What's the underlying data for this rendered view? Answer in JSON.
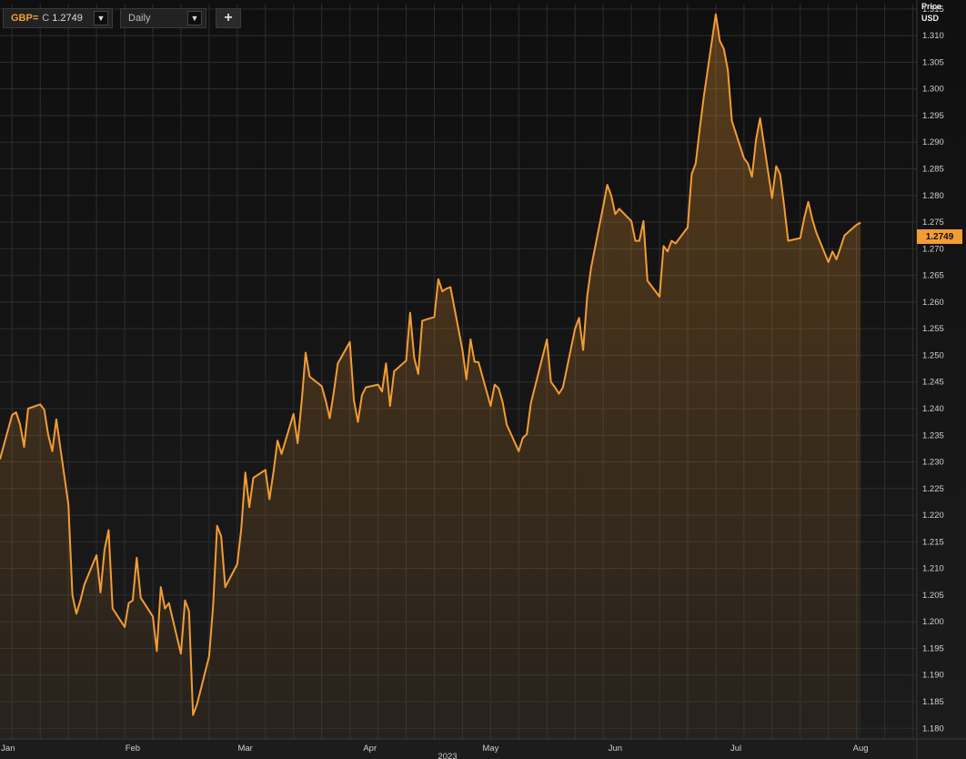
{
  "toolbar": {
    "symbol": "GBP=",
    "price_label": "C",
    "price_value": "1.2749",
    "interval": "Daily",
    "add_label": "+",
    "dropdown_icon": "triangle-down-icon",
    "add_icon": "plus-icon"
  },
  "axis": {
    "label_price": "Price",
    "label_currency": "USD"
  },
  "last_price_tag": "1.2749",
  "colors": {
    "line": "#f39c34",
    "background": "#161616",
    "grid": "#2e2e2e",
    "text": "#d0d0d0"
  },
  "chart_data": {
    "type": "area",
    "title": "",
    "xlabel": "2023",
    "ylabel": "Price USD",
    "ylim": [
      1.178,
      1.316
    ],
    "xlim": [
      "2022-12-30",
      "2023-08-15"
    ],
    "grid": true,
    "y_ticks": [
      "1.180",
      "1.185",
      "1.190",
      "1.195",
      "1.200",
      "1.205",
      "1.210",
      "1.215",
      "1.220",
      "1.225",
      "1.230",
      "1.235",
      "1.240",
      "1.245",
      "1.250",
      "1.255",
      "1.260",
      "1.265",
      "1.270",
      "1.275",
      "1.280",
      "1.285",
      "1.290",
      "1.295",
      "1.300",
      "1.305",
      "1.310",
      "1.315"
    ],
    "x_ticks": [
      {
        "label": "Jan",
        "date": "2023-01-01"
      },
      {
        "label": "Feb",
        "date": "2023-02-01"
      },
      {
        "label": "Mar",
        "date": "2023-03-01"
      },
      {
        "label": "Apr",
        "date": "2023-04-01"
      },
      {
        "label": "May",
        "date": "2023-05-01"
      },
      {
        "label": "Jun",
        "date": "2023-06-01"
      },
      {
        "label": "Jul",
        "date": "2023-07-01"
      },
      {
        "label": "Aug",
        "date": "2023-08-01"
      }
    ],
    "series": [
      {
        "name": "GBP=",
        "points": [
          [
            "2022-12-30",
            1.2305
          ],
          [
            "2023-01-02",
            1.2388
          ],
          [
            "2023-01-03",
            1.2393
          ],
          [
            "2023-01-04",
            1.237
          ],
          [
            "2023-01-05",
            1.2328
          ],
          [
            "2023-01-06",
            1.24
          ],
          [
            "2023-01-09",
            1.2408
          ],
          [
            "2023-01-10",
            1.2398
          ],
          [
            "2023-01-11",
            1.235
          ],
          [
            "2023-01-12",
            1.232
          ],
          [
            "2023-01-13",
            1.238
          ],
          [
            "2023-01-16",
            1.222
          ],
          [
            "2023-01-17",
            1.205
          ],
          [
            "2023-01-18",
            1.2015
          ],
          [
            "2023-01-19",
            1.204
          ],
          [
            "2023-01-20",
            1.207
          ],
          [
            "2023-01-23",
            1.2125
          ],
          [
            "2023-01-24",
            1.2055
          ],
          [
            "2023-01-25",
            1.2135
          ],
          [
            "2023-01-26",
            1.2172
          ],
          [
            "2023-01-27",
            1.2025
          ],
          [
            "2023-01-30",
            1.199
          ],
          [
            "2023-01-31",
            1.2035
          ],
          [
            "2023-02-01",
            1.204
          ],
          [
            "2023-02-02",
            1.212
          ],
          [
            "2023-02-03",
            1.2045
          ],
          [
            "2023-02-06",
            1.201
          ],
          [
            "2023-02-07",
            1.1945
          ],
          [
            "2023-02-08",
            1.2065
          ],
          [
            "2023-02-09",
            1.2025
          ],
          [
            "2023-02-10",
            1.2035
          ],
          [
            "2023-02-13",
            1.194
          ],
          [
            "2023-02-14",
            1.204
          ],
          [
            "2023-02-15",
            1.202
          ],
          [
            "2023-02-16",
            1.1825
          ],
          [
            "2023-02-17",
            1.1845
          ],
          [
            "2023-02-20",
            1.1935
          ],
          [
            "2023-02-21",
            1.203
          ],
          [
            "2023-02-22",
            1.218
          ],
          [
            "2023-02-23",
            1.216
          ],
          [
            "2023-02-24",
            1.2065
          ],
          [
            "2023-02-27",
            1.2108
          ],
          [
            "2023-02-28",
            1.2175
          ],
          [
            "2023-03-01",
            1.228
          ],
          [
            "2023-03-02",
            1.2215
          ],
          [
            "2023-03-03",
            1.227
          ],
          [
            "2023-03-06",
            1.2285
          ],
          [
            "2023-03-07",
            1.223
          ],
          [
            "2023-03-08",
            1.228
          ],
          [
            "2023-03-09",
            1.234
          ],
          [
            "2023-03-10",
            1.2315
          ],
          [
            "2023-03-13",
            1.239
          ],
          [
            "2023-03-14",
            1.2335
          ],
          [
            "2023-03-15",
            1.2412
          ],
          [
            "2023-03-16",
            1.2505
          ],
          [
            "2023-03-17",
            1.246
          ],
          [
            "2023-03-20",
            1.2442
          ],
          [
            "2023-03-21",
            1.2415
          ],
          [
            "2023-03-22",
            1.2382
          ],
          [
            "2023-03-23",
            1.243
          ],
          [
            "2023-03-24",
            1.2485
          ],
          [
            "2023-03-27",
            1.2525
          ],
          [
            "2023-03-28",
            1.2415
          ],
          [
            "2023-03-29",
            1.2375
          ],
          [
            "2023-03-30",
            1.2425
          ],
          [
            "2023-03-31",
            1.244
          ],
          [
            "2023-04-03",
            1.2445
          ],
          [
            "2023-04-04",
            1.2432
          ],
          [
            "2023-04-05",
            1.2485
          ],
          [
            "2023-04-06",
            1.2405
          ],
          [
            "2023-04-07",
            1.247
          ],
          [
            "2023-04-10",
            1.249
          ],
          [
            "2023-04-11",
            1.258
          ],
          [
            "2023-04-12",
            1.2495
          ],
          [
            "2023-04-13",
            1.2465
          ],
          [
            "2023-04-14",
            1.2565
          ],
          [
            "2023-04-17",
            1.2572
          ],
          [
            "2023-04-18",
            1.2643
          ],
          [
            "2023-04-19",
            1.262
          ],
          [
            "2023-04-20",
            1.2625
          ],
          [
            "2023-04-21",
            1.2628
          ],
          [
            "2023-04-24",
            1.251
          ],
          [
            "2023-04-25",
            1.2455
          ],
          [
            "2023-04-26",
            1.253
          ],
          [
            "2023-04-27",
            1.2488
          ],
          [
            "2023-04-28",
            1.2487
          ],
          [
            "2023-05-01",
            1.2405
          ],
          [
            "2023-05-02",
            1.2445
          ],
          [
            "2023-05-03",
            1.2438
          ],
          [
            "2023-05-04",
            1.2412
          ],
          [
            "2023-05-05",
            1.237
          ],
          [
            "2023-05-08",
            1.232
          ],
          [
            "2023-05-09",
            1.2345
          ],
          [
            "2023-05-10",
            1.2352
          ],
          [
            "2023-05-11",
            1.241
          ],
          [
            "2023-05-12",
            1.244
          ],
          [
            "2023-05-15",
            1.253
          ],
          [
            "2023-05-16",
            1.245
          ],
          [
            "2023-05-17",
            1.244
          ],
          [
            "2023-05-18",
            1.2428
          ],
          [
            "2023-05-19",
            1.244
          ],
          [
            "2023-05-22",
            1.255
          ],
          [
            "2023-05-23",
            1.257
          ],
          [
            "2023-05-24",
            1.251
          ],
          [
            "2023-05-25",
            1.261
          ],
          [
            "2023-05-26",
            1.2665
          ],
          [
            "2023-05-29",
            1.278
          ],
          [
            "2023-05-30",
            1.282
          ],
          [
            "2023-05-31",
            1.28
          ],
          [
            "2023-06-01",
            1.2765
          ],
          [
            "2023-06-02",
            1.2775
          ],
          [
            "2023-06-05",
            1.2752
          ],
          [
            "2023-06-06",
            1.2715
          ],
          [
            "2023-06-07",
            1.2715
          ],
          [
            "2023-06-08",
            1.2752
          ],
          [
            "2023-06-09",
            1.264
          ],
          [
            "2023-06-12",
            1.261
          ],
          [
            "2023-06-13",
            1.2705
          ],
          [
            "2023-06-14",
            1.2695
          ],
          [
            "2023-06-15",
            1.2715
          ],
          [
            "2023-06-16",
            1.271
          ],
          [
            "2023-06-19",
            1.274
          ],
          [
            "2023-06-20",
            1.284
          ],
          [
            "2023-06-21",
            1.286
          ],
          [
            "2023-06-22",
            1.2925
          ],
          [
            "2023-06-23",
            1.2985
          ],
          [
            "2023-06-26",
            1.314
          ],
          [
            "2023-06-27",
            1.309
          ],
          [
            "2023-06-28",
            1.3075
          ],
          [
            "2023-06-29",
            1.3035
          ],
          [
            "2023-06-30",
            1.294
          ],
          [
            "2023-07-03",
            1.287
          ],
          [
            "2023-07-04",
            1.286
          ],
          [
            "2023-07-05",
            1.2835
          ],
          [
            "2023-07-06",
            1.2905
          ],
          [
            "2023-07-07",
            1.2945
          ],
          [
            "2023-07-10",
            1.2795
          ],
          [
            "2023-07-11",
            1.2855
          ],
          [
            "2023-07-12",
            1.284
          ],
          [
            "2023-07-13",
            1.278
          ],
          [
            "2023-07-14",
            1.2715
          ],
          [
            "2023-07-17",
            1.272
          ],
          [
            "2023-07-18",
            1.2758
          ],
          [
            "2023-07-19",
            1.2788
          ],
          [
            "2023-07-20",
            1.2755
          ],
          [
            "2023-07-21",
            1.273
          ],
          [
            "2023-07-24",
            1.2675
          ],
          [
            "2023-07-25",
            1.2695
          ],
          [
            "2023-07-26",
            1.268
          ],
          [
            "2023-07-27",
            1.2702
          ],
          [
            "2023-07-28",
            1.2725
          ],
          [
            "2023-07-31",
            1.2745
          ],
          [
            "2023-08-01",
            1.2749
          ]
        ]
      }
    ]
  }
}
